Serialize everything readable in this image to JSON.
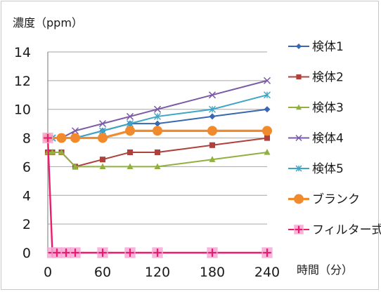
{
  "chart_data": {
    "type": "line",
    "ylabel": "濃度（ppm）",
    "xlabel": "時間（分）",
    "ylim": [
      0,
      14
    ],
    "yticks": [
      0,
      2,
      4,
      6,
      8,
      10,
      12,
      14
    ],
    "xlim": [
      0,
      240
    ],
    "xticks": [
      0,
      60,
      120,
      180,
      240
    ],
    "grid": "horizontal",
    "legend_position": "right",
    "series": [
      {
        "name": "検体1",
        "color": "#3b66b0",
        "marker": "diamond",
        "x": [
          0,
          5,
          15,
          30,
          60,
          90,
          120,
          180,
          240
        ],
        "y": [
          8,
          8,
          8,
          8,
          8.5,
          9,
          9,
          9.5,
          10
        ]
      },
      {
        "name": "検体2",
        "color": "#b0403c",
        "marker": "square",
        "x": [
          0,
          5,
          15,
          30,
          60,
          90,
          120,
          180,
          240
        ],
        "y": [
          7,
          7,
          7,
          6,
          6.5,
          7,
          7,
          7.5,
          8
        ]
      },
      {
        "name": "検体3",
        "color": "#90b040",
        "marker": "triangle",
        "x": [
          0,
          5,
          15,
          30,
          60,
          90,
          120,
          180,
          240
        ],
        "y": [
          7,
          7,
          7,
          6,
          6,
          6,
          6,
          6.5,
          7
        ]
      },
      {
        "name": "検体4",
        "color": "#7a5aa6",
        "marker": "x",
        "x": [
          0,
          5,
          15,
          30,
          60,
          90,
          120,
          180,
          240
        ],
        "y": [
          8,
          8,
          8,
          8.5,
          9,
          9.5,
          10,
          11,
          12
        ]
      },
      {
        "name": "検体5",
        "color": "#3ea6c4",
        "marker": "star",
        "x": [
          0,
          5,
          15,
          30,
          60,
          90,
          120,
          180,
          240
        ],
        "y": [
          8,
          8,
          8,
          8,
          8.5,
          9,
          9.5,
          10,
          11
        ]
      },
      {
        "name": "ブランク",
        "color": "#f08a2c",
        "marker": "circle",
        "x": [
          0,
          15,
          30,
          60,
          90,
          120,
          180,
          240
        ],
        "y": [
          8,
          8,
          8,
          8,
          8.5,
          8.5,
          8.5,
          8.5
        ]
      },
      {
        "name": "フィルター式",
        "color": "#ec1c6c",
        "marker": "plus",
        "x": [
          0,
          5,
          10,
          20,
          30,
          60,
          90,
          120,
          180,
          240
        ],
        "y": [
          8,
          0,
          0,
          0,
          0,
          0,
          0,
          0,
          0,
          0
        ]
      }
    ]
  }
}
